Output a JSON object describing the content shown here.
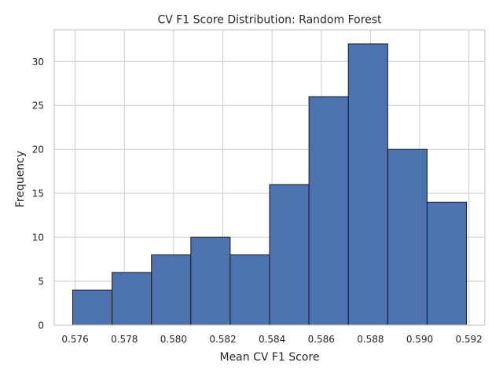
{
  "chart_data": {
    "type": "bar",
    "title": "CV F1 Score Distribution: Random Forest",
    "xlabel": "Mean CV F1 Score",
    "ylabel": "Frequency",
    "bins": [
      {
        "start": 0.5759,
        "end": 0.5759,
        "count": 4
      },
      {
        "start": 0.5775,
        "end": 0.5775,
        "count": 6
      },
      {
        "start": 0.5791,
        "end": 0.5791,
        "count": 8
      },
      {
        "start": 0.5807,
        "end": 0.5807,
        "count": 10
      },
      {
        "start": 0.5823,
        "end": 0.5823,
        "count": 8
      },
      {
        "start": 0.5839,
        "end": 0.5839,
        "count": 16
      },
      {
        "start": 0.5855,
        "end": 0.5855,
        "count": 26
      },
      {
        "start": 0.5871,
        "end": 0.5871,
        "count": 32
      },
      {
        "start": 0.5887,
        "end": 0.5887,
        "count": 20
      },
      {
        "start": 0.5903,
        "end": 0.5903,
        "count": 14
      }
    ],
    "bin_edges": [
      0.5759,
      0.5775,
      0.5791,
      0.5807,
      0.5823,
      0.5839,
      0.5855,
      0.5871,
      0.5887,
      0.5903,
      0.5919
    ],
    "counts": [
      4,
      6,
      8,
      10,
      8,
      16,
      26,
      32,
      20,
      14
    ],
    "xlim": [
      0.57515,
      0.59265
    ],
    "ylim": [
      0,
      33.6
    ],
    "xticks": [
      0.576,
      0.578,
      0.58,
      0.582,
      0.584,
      0.586,
      0.588,
      0.59,
      0.592
    ],
    "xtick_labels": [
      "0.576",
      "0.578",
      "0.580",
      "0.582",
      "0.584",
      "0.586",
      "0.588",
      "0.590",
      "0.592"
    ],
    "yticks": [
      0,
      5,
      10,
      15,
      20,
      25,
      30
    ],
    "ytick_labels": [
      "0",
      "5",
      "10",
      "15",
      "20",
      "25",
      "30"
    ],
    "grid": true,
    "colors": {
      "bar_fill": "#4c72b0",
      "bar_edge": "#1a1a1a",
      "grid": "#cccccc",
      "spine": "#cccccc",
      "text": "#262626"
    }
  }
}
